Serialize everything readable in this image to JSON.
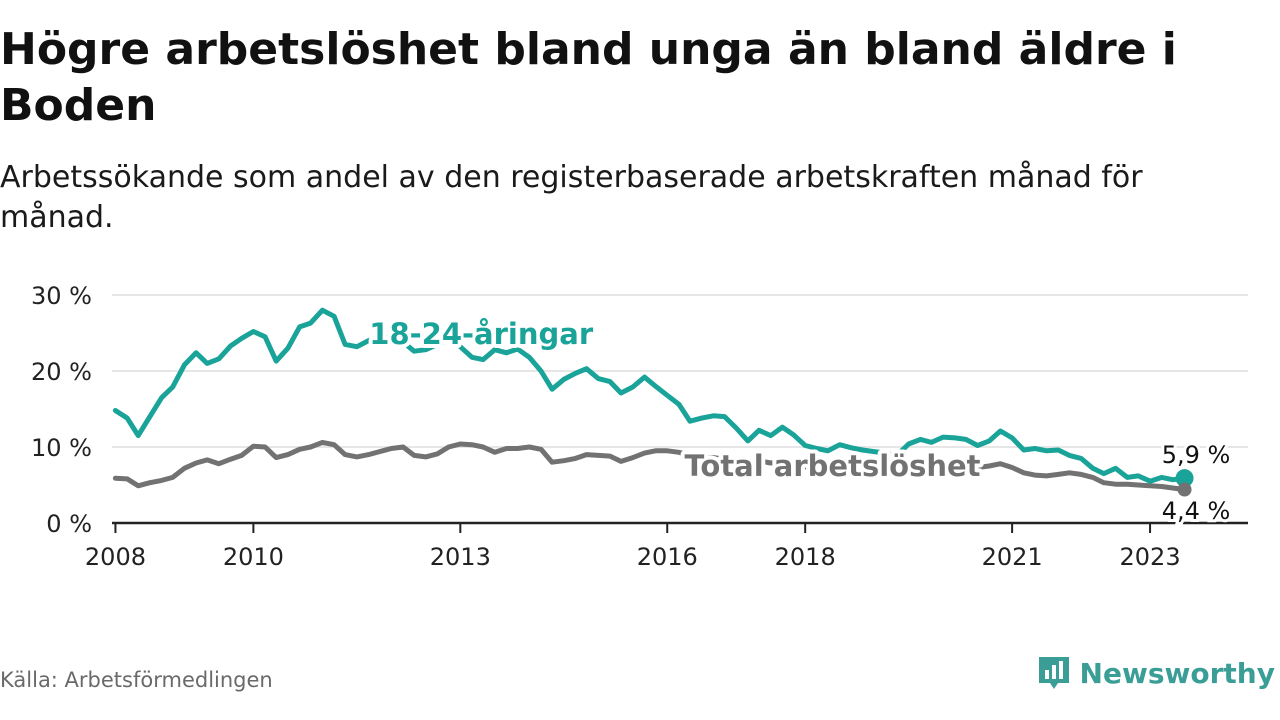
{
  "header": {
    "title": "Högre arbetslöshet bland unga än bland äldre i Boden",
    "subtitle": "Arbetssökande som andel av den registerbaserade arbetskraften månad för månad."
  },
  "footer": {
    "source": "Källa: Arbetsförmedlingen",
    "brand": "Newsworthy",
    "brand_icon": "newsworthy-logo-icon"
  },
  "colors": {
    "youth": "#1aa399",
    "total": "#727272",
    "axis": "#222222",
    "grid": "#dddddd",
    "brand": "#3a9e96"
  },
  "chart_data": {
    "type": "line",
    "title": "Högre arbetslöshet bland unga än bland äldre i Boden",
    "subtitle": "Arbetssökande som andel av den registerbaserade arbetskraften månad för månad.",
    "xlabel": "",
    "ylabel": "",
    "xlim": [
      2008.0,
      2024.2
    ],
    "ylim": [
      0,
      30
    ],
    "yticks": [
      0,
      10,
      20,
      30
    ],
    "ytick_labels": [
      "0 %",
      "10 %",
      "20 %",
      "30 %"
    ],
    "xticks": [
      2008,
      2010,
      2013,
      2016,
      2018,
      2021,
      2023
    ],
    "xtick_labels": [
      "2008",
      "2010",
      "2013",
      "2016",
      "2018",
      "2021",
      "2023"
    ],
    "grid": true,
    "series": [
      {
        "name": "18-24-åringar",
        "label": "18-24-åringar",
        "x": [
          2008.0,
          2008.17,
          2008.33,
          2008.5,
          2008.67,
          2008.83,
          2009.0,
          2009.17,
          2009.33,
          2009.5,
          2009.67,
          2009.83,
          2010.0,
          2010.17,
          2010.33,
          2010.5,
          2010.67,
          2010.83,
          2011.0,
          2011.17,
          2011.33,
          2011.5,
          2011.67,
          2011.83,
          2012.0,
          2012.17,
          2012.33,
          2012.5,
          2012.67,
          2012.83,
          2013.0,
          2013.17,
          2013.33,
          2013.5,
          2013.67,
          2013.83,
          2014.0,
          2014.17,
          2014.33,
          2014.5,
          2014.67,
          2014.83,
          2015.0,
          2015.17,
          2015.33,
          2015.5,
          2015.67,
          2015.83,
          2016.0,
          2016.17,
          2016.33,
          2016.5,
          2016.67,
          2016.83,
          2017.0,
          2017.17,
          2017.33,
          2017.5,
          2017.67,
          2017.83,
          2018.0,
          2018.17,
          2018.33,
          2018.5,
          2018.67,
          2018.83,
          2019.0,
          2019.17,
          2019.33,
          2019.5,
          2019.67,
          2019.83,
          2020.0,
          2020.17,
          2020.33,
          2020.5,
          2020.67,
          2020.83,
          2021.0,
          2021.17,
          2021.33,
          2021.5,
          2021.67,
          2021.83,
          2022.0,
          2022.17,
          2022.33,
          2022.5,
          2022.67,
          2022.83,
          2023.0,
          2023.17,
          2023.33,
          2023.5
        ],
        "values": [
          14.8,
          13.8,
          11.5,
          14.0,
          16.5,
          17.9,
          20.8,
          22.4,
          21.0,
          21.6,
          23.3,
          24.3,
          25.2,
          24.5,
          21.3,
          23.0,
          25.8,
          26.3,
          28.0,
          27.2,
          23.5,
          23.2,
          24.0,
          24.5,
          24.2,
          23.8,
          22.6,
          22.8,
          23.5,
          24.2,
          23.2,
          21.8,
          21.5,
          22.8,
          22.4,
          22.9,
          21.8,
          20.0,
          17.6,
          18.9,
          19.7,
          20.3,
          19.0,
          18.6,
          17.1,
          17.9,
          19.2,
          18.0,
          16.8,
          15.6,
          13.4,
          13.8,
          14.1,
          14.0,
          12.5,
          10.8,
          12.2,
          11.5,
          12.6,
          11.6,
          10.2,
          9.8,
          9.5,
          10.3,
          9.9,
          9.6,
          9.4,
          9.2,
          8.9,
          10.4,
          11.0,
          10.6,
          11.3,
          11.2,
          11.0,
          10.2,
          10.8,
          12.1,
          11.2,
          9.6,
          9.8,
          9.5,
          9.6,
          8.9,
          8.5,
          7.2,
          6.5,
          7.2,
          6.0,
          6.2,
          5.5,
          6.0,
          5.7,
          5.9
        ]
      },
      {
        "name": "Total arbetslöshet",
        "label": "Total arbetslöshet",
        "x": [
          2008.0,
          2008.17,
          2008.33,
          2008.5,
          2008.67,
          2008.83,
          2009.0,
          2009.17,
          2009.33,
          2009.5,
          2009.67,
          2009.83,
          2010.0,
          2010.17,
          2010.33,
          2010.5,
          2010.67,
          2010.83,
          2011.0,
          2011.17,
          2011.33,
          2011.5,
          2011.67,
          2011.83,
          2012.0,
          2012.17,
          2012.33,
          2012.5,
          2012.67,
          2012.83,
          2013.0,
          2013.17,
          2013.33,
          2013.5,
          2013.67,
          2013.83,
          2014.0,
          2014.17,
          2014.33,
          2014.5,
          2014.67,
          2014.83,
          2015.0,
          2015.17,
          2015.33,
          2015.5,
          2015.67,
          2015.83,
          2016.0,
          2016.17,
          2016.33,
          2016.5,
          2016.67,
          2016.83,
          2017.0,
          2017.17,
          2017.33,
          2017.5,
          2017.67,
          2017.83,
          2018.0,
          2018.17,
          2018.33,
          2018.5,
          2018.67,
          2018.83,
          2019.0,
          2019.17,
          2019.33,
          2019.5,
          2019.67,
          2019.83,
          2020.0,
          2020.17,
          2020.33,
          2020.5,
          2020.67,
          2020.83,
          2021.0,
          2021.17,
          2021.33,
          2021.5,
          2021.67,
          2021.83,
          2022.0,
          2022.17,
          2022.33,
          2022.5,
          2022.67,
          2022.83,
          2023.0,
          2023.17,
          2023.33,
          2023.5
        ],
        "values": [
          5.9,
          5.8,
          4.9,
          5.3,
          5.6,
          6.0,
          7.2,
          7.9,
          8.3,
          7.8,
          8.4,
          8.9,
          10.1,
          10.0,
          8.6,
          9.0,
          9.7,
          10.0,
          10.6,
          10.3,
          9.0,
          8.7,
          9.0,
          9.4,
          9.8,
          10.0,
          8.9,
          8.7,
          9.1,
          10.0,
          10.4,
          10.3,
          10.0,
          9.3,
          9.8,
          9.8,
          10.0,
          9.7,
          8.0,
          8.2,
          8.5,
          9.0,
          8.9,
          8.8,
          8.1,
          8.6,
          9.2,
          9.5,
          9.5,
          9.3,
          8.9,
          8.5,
          8.6,
          8.4,
          8.2,
          8.0,
          8.2,
          7.9,
          8.1,
          7.6,
          7.4,
          7.2,
          7.0,
          7.3,
          7.1,
          7.0,
          7.2,
          7.4,
          7.4,
          7.6,
          7.5,
          7.4,
          7.6,
          7.4,
          7.2,
          7.3,
          7.5,
          7.8,
          7.3,
          6.6,
          6.3,
          6.2,
          6.4,
          6.6,
          6.4,
          6.0,
          5.3,
          5.1,
          5.1,
          5.0,
          4.9,
          4.8,
          4.6,
          4.4
        ]
      }
    ],
    "annotations": [
      {
        "series": "18-24-åringar",
        "text": "5,9 %",
        "value": 5.9
      },
      {
        "series": "Total arbetslöshet",
        "text": "4,4 %",
        "value": 4.4
      }
    ]
  }
}
